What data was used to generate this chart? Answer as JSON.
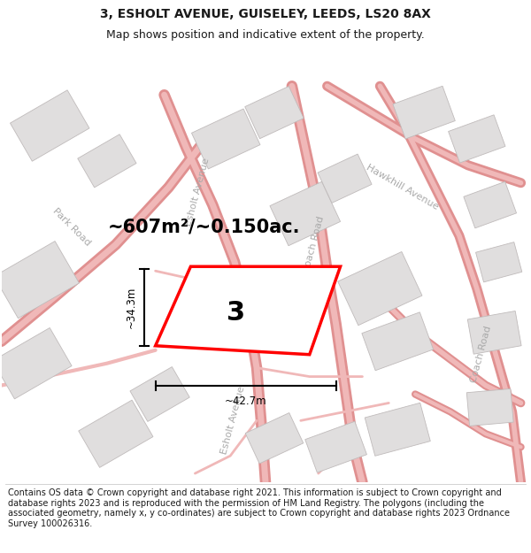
{
  "title_line1": "3, ESHOLT AVENUE, GUISELEY, LEEDS, LS20 8AX",
  "title_line2": "Map shows position and indicative extent of the property.",
  "area_text": "~607m²/~0.150ac.",
  "number_label": "3",
  "dim_width": "~42.7m",
  "dim_height": "~34.3m",
  "footer_text": "Contains OS data © Crown copyright and database right 2021. This information is subject to Crown copyright and database rights 2023 and is reproduced with the permission of HM Land Registry. The polygons (including the associated geometry, namely x, y co-ordinates) are subject to Crown copyright and database rights 2023 Ordnance Survey 100026316.",
  "map_bg": "#f7f6f6",
  "road_color": "#f0b8b8",
  "road_outline": "#e09090",
  "building_fill": "#e0dede",
  "building_edge": "#c0bbbb",
  "plot_edge": "#ff0000",
  "plot_fill": "#ffffff",
  "text_color": "#1a1a1a",
  "road_label_color": "#aaaaaa",
  "title_fontsize": 10,
  "subtitle_fontsize": 9,
  "footer_fontsize": 7.0
}
